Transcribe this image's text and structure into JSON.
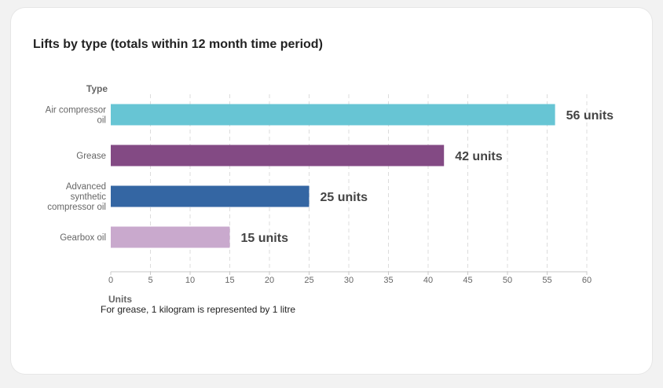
{
  "card": {
    "title": "Lifts by type (totals within 12 month time period)",
    "note": "For grease, 1 kilogram is represented by 1 litre"
  },
  "chart_data": {
    "type": "bar",
    "orientation": "horizontal",
    "title": "Lifts by type (totals within 12 month time period)",
    "ylabel": "Type",
    "xlabel": "Units",
    "categories": [
      [
        "Air compressor",
        "oil"
      ],
      [
        "Grease"
      ],
      [
        "Advanced",
        "synthetic",
        "compressor oil"
      ],
      [
        "Gearbox oil"
      ]
    ],
    "values": [
      56,
      42,
      25,
      15
    ],
    "data_labels": [
      "56 units",
      "42 units",
      "25 units",
      "15 units"
    ],
    "colors": [
      "#67c5d4",
      "#834a84",
      "#3466a3",
      "#c9a9cd"
    ],
    "xlim": [
      0,
      60
    ],
    "xticks": [
      0,
      5,
      10,
      15,
      20,
      25,
      30,
      35,
      40,
      45,
      50,
      55,
      60
    ],
    "grid": "vertical dashed",
    "legend": "none"
  }
}
